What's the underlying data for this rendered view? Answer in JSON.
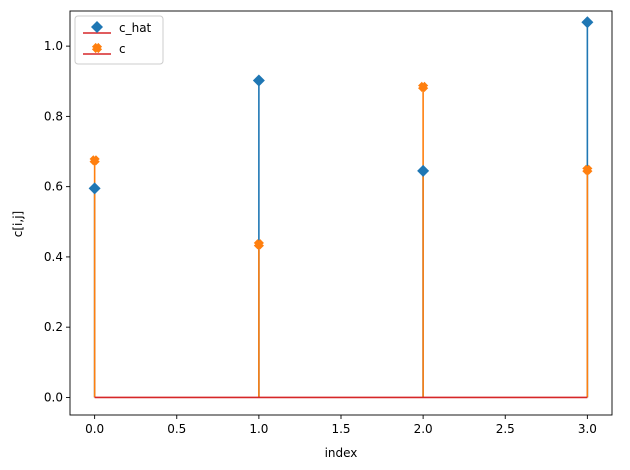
{
  "chart_data": {
    "type": "stem",
    "title": "",
    "xlabel": "index",
    "ylabel": "c[i,j]",
    "xlim": [
      -0.15,
      3.15
    ],
    "ylim": [
      -0.05,
      1.1
    ],
    "xticks": [
      "0.0",
      "0.5",
      "1.0",
      "1.5",
      "2.0",
      "2.5",
      "3.0"
    ],
    "yticks": [
      "0.0",
      "0.2",
      "0.4",
      "0.6",
      "0.8",
      "1.0"
    ],
    "grid": false,
    "legend_position": "top-left",
    "baseline": 0,
    "x": [
      0,
      1,
      2,
      3
    ],
    "series": [
      {
        "name": "c_hat",
        "values": [
          0.595,
          0.902,
          0.645,
          1.068
        ],
        "color": "#1f77b4",
        "marker": "diamond"
      },
      {
        "name": "c",
        "values": [
          0.675,
          0.436,
          0.884,
          0.648
        ],
        "color": "#ff7f0e",
        "marker": "x"
      }
    ],
    "baseline_color": "#d62728"
  }
}
